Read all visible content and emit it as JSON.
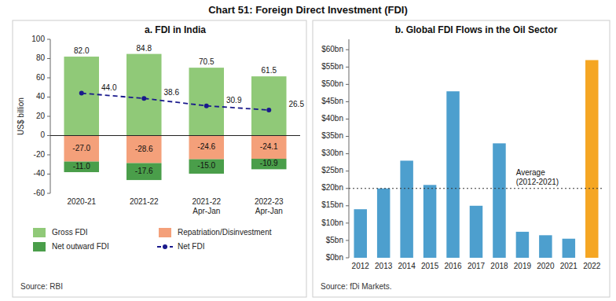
{
  "title": "Chart 51: Foreign Direct Investment (FDI)",
  "chart_data": [
    {
      "type": "bar",
      "title": "a. FDI in India",
      "categories": [
        "2020-21",
        "2021-22",
        "2021-22\nApr-Jan",
        "2022-23\nApr-Jan"
      ],
      "series": [
        {
          "name": "Gross FDI",
          "color": "#90c978",
          "values": [
            82.0,
            84.8,
            70.5,
            61.5
          ],
          "value_labels": [
            "82.0",
            "84.8",
            "70.5",
            "61.5"
          ]
        },
        {
          "name": "Repatriation/Disinvestment",
          "color": "#f4a07a",
          "values": [
            -27.0,
            -28.6,
            -24.6,
            -24.1
          ],
          "value_labels": [
            "-27.0",
            "-28.6",
            "-24.6",
            "-24.1"
          ]
        },
        {
          "name": "Net outward FDI",
          "color": "#4a9e4a",
          "values": [
            -11.0,
            -17.6,
            -15.0,
            -10.9
          ],
          "value_labels": [
            "-11.0",
            "-17.6",
            "-15.0",
            "-10.9"
          ]
        },
        {
          "name": "Net FDI",
          "type": "line",
          "color": "#1a1a8c",
          "line_style": "dashed",
          "marker": "circle",
          "values": [
            44.0,
            38.6,
            30.9,
            26.5
          ],
          "value_labels": [
            "44.0",
            "38.6",
            "30.9",
            "26.5"
          ]
        }
      ],
      "stacked": true,
      "data_labels": true,
      "ylabel": "US$ billion",
      "ylim": [
        -60,
        100
      ],
      "yticks": [
        -60,
        -40,
        -20,
        0,
        20,
        40,
        60,
        80,
        100
      ],
      "grid": false,
      "legend": "bottom",
      "annotations": [
        "Source: RBI"
      ]
    },
    {
      "type": "bar",
      "title": "b. Global FDI Flows in the Oil Sector",
      "categories": [
        "2012",
        "2013",
        "2014",
        "2015",
        "2016",
        "2017",
        "2018",
        "2019",
        "2020",
        "2021",
        "2022"
      ],
      "values": [
        14,
        20,
        28,
        21,
        48,
        15,
        33,
        7.5,
        6.5,
        5.5,
        57
      ],
      "colors": [
        "#4d9fce",
        "#4d9fce",
        "#4d9fce",
        "#4d9fce",
        "#4d9fce",
        "#4d9fce",
        "#4d9fce",
        "#4d9fce",
        "#4d9fce",
        "#4d9fce",
        "#f5a623"
      ],
      "ylim": [
        0,
        63
      ],
      "yticks": [
        {
          "value": 0,
          "label": "$0bn"
        },
        {
          "value": 5,
          "label": "$5bn"
        },
        {
          "value": 10,
          "label": "$10bn"
        },
        {
          "value": 15,
          "label": "$15bn"
        },
        {
          "value": 20,
          "label": "$20bn"
        },
        {
          "value": 25,
          "label": "$25bn"
        },
        {
          "value": 30,
          "label": "$30bn"
        },
        {
          "value": 35,
          "label": "$35bn"
        },
        {
          "value": 40,
          "label": "$40bn"
        },
        {
          "value": 45,
          "label": "$45bn"
        },
        {
          "value": 50,
          "label": "$50bn"
        },
        {
          "value": 55,
          "label": "$55bn"
        },
        {
          "value": 60,
          "label": "$60bn"
        }
      ],
      "grid": false,
      "reference_line": {
        "value": 20,
        "label": "Average\n(2012-2021)"
      },
      "annotations": [
        "Source: fDi Markets."
      ]
    }
  ]
}
